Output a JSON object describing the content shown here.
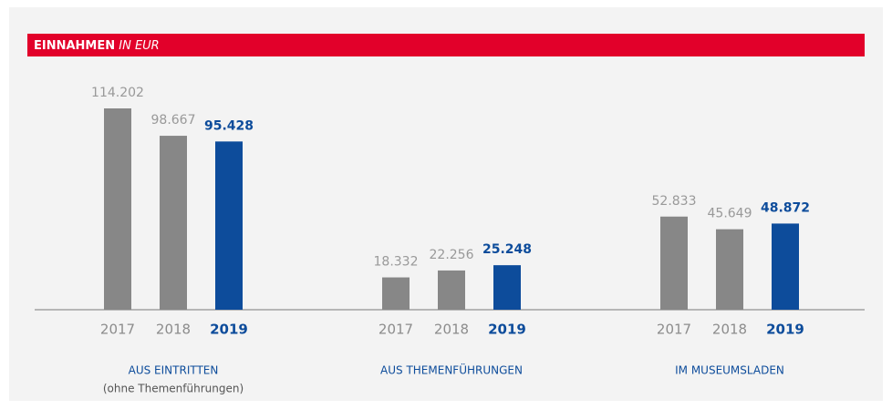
{
  "chart_data": {
    "type": "bar",
    "title": "EINNAHMEN",
    "subtitle": "IN EUR",
    "categories": [
      "AUS EINTRITTEN",
      "AUS THEMENFÜHRUNGEN",
      "IM MUSEUMSLADEN"
    ],
    "notes": [
      "(ohne Themenführungen)"
    ],
    "series": [
      {
        "name": "2017",
        "color": "#878787",
        "bold": false,
        "values": [
          114202,
          18332,
          52833
        ],
        "value_labels": [
          "114.202",
          "18.332",
          "52.833"
        ]
      },
      {
        "name": "2018",
        "color": "#878787",
        "bold": false,
        "values": [
          98667,
          22256,
          45649
        ],
        "value_labels": [
          "98.667",
          "22.256",
          "45.649"
        ]
      },
      {
        "name": "2019",
        "color": "#0d4c9b",
        "bold": true,
        "values": [
          95428,
          25248,
          48872
        ],
        "value_labels": [
          "95.428",
          "25.248",
          "48.872"
        ]
      }
    ]
  }
}
